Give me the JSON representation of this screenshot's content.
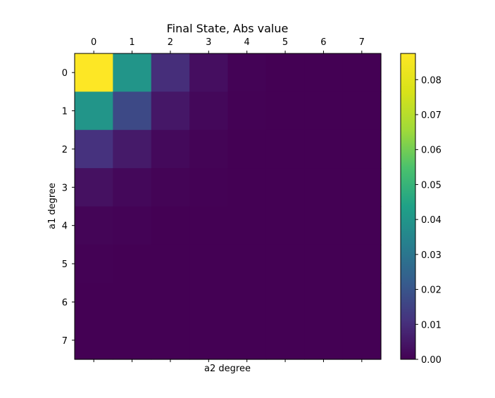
{
  "chart_data": {
    "type": "heatmap",
    "title": "Final State, Abs value",
    "xlabel": "a2 degree",
    "ylabel": "a1 degree",
    "x_ticks": [
      "0",
      "1",
      "2",
      "3",
      "4",
      "5",
      "6",
      "7"
    ],
    "y_ticks": [
      "0",
      "1",
      "2",
      "3",
      "4",
      "5",
      "6",
      "7"
    ],
    "x_tick_position": "top",
    "colormap": "viridis",
    "colorbar": {
      "vmin": 0.0,
      "vmax": 0.0875,
      "ticks": [
        "0.00",
        "0.01",
        "0.02",
        "0.03",
        "0.04",
        "0.05",
        "0.06",
        "0.07",
        "0.08"
      ]
    },
    "values": [
      [
        0.0875,
        0.04,
        0.01,
        0.003,
        0.0005,
        0.0001,
        0.0,
        0.0
      ],
      [
        0.04,
        0.017,
        0.005,
        0.0015,
        0.0003,
        0.0,
        0.0,
        0.0
      ],
      [
        0.011,
        0.0055,
        0.0018,
        0.0006,
        0.0001,
        0.0,
        0.0,
        0.0
      ],
      [
        0.0035,
        0.0016,
        0.0006,
        0.0002,
        0.0,
        0.0,
        0.0,
        0.0
      ],
      [
        0.0008,
        0.0004,
        0.0001,
        0.0,
        0.0,
        0.0,
        0.0,
        0.0
      ],
      [
        0.0002,
        0.0001,
        0.0,
        0.0,
        0.0,
        0.0,
        0.0,
        0.0
      ],
      [
        0.0,
        0.0,
        0.0,
        0.0,
        0.0,
        0.0,
        0.0,
        0.0
      ],
      [
        0.0,
        0.0,
        0.0,
        0.0,
        0.0,
        0.0,
        0.0,
        0.0
      ]
    ]
  }
}
